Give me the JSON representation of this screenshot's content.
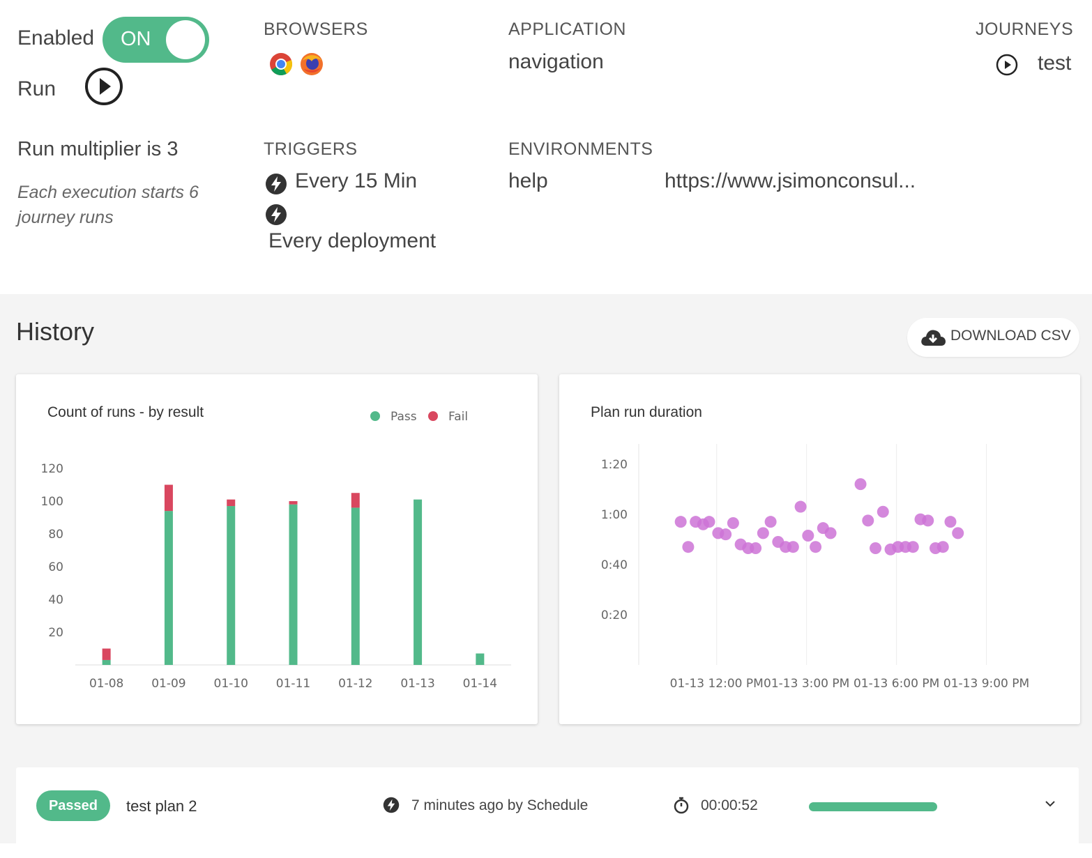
{
  "settings": {
    "enabled_label": "Enabled",
    "toggle_text": "ON",
    "run_label": "Run",
    "multiplier_text": "Run multiplier is 3",
    "execution_note": "Each execution starts 6 journey runs"
  },
  "browsers": {
    "header": "BROWSERS",
    "items": [
      "chrome-icon",
      "firefox-icon"
    ]
  },
  "application": {
    "header": "APPLICATION",
    "value": "navigation"
  },
  "journeys": {
    "header": "JOURNEYS",
    "items": [
      {
        "label": "test"
      }
    ]
  },
  "triggers": {
    "header": "TRIGGERS",
    "items": [
      {
        "label": "Every 15 Min"
      },
      {
        "label": "Every deployment"
      }
    ]
  },
  "environments": {
    "header": "ENVIRONMENTS",
    "name": "help",
    "url": "https://www.jsimonconsul..."
  },
  "history": {
    "title": "History",
    "download_label": "DOWNLOAD CSV"
  },
  "colors": {
    "pass": "#52b98a",
    "fail": "#d9475f",
    "duration": "#cd73d6",
    "accent": "#52b98a"
  },
  "chart_data": [
    {
      "type": "bar",
      "title": "Count of runs - by result",
      "categories": [
        "01-08",
        "01-09",
        "01-10",
        "01-11",
        "01-12",
        "01-13",
        "01-14"
      ],
      "series": [
        {
          "name": "Pass",
          "values": [
            3,
            94,
            97,
            98,
            96,
            101,
            7
          ]
        },
        {
          "name": "Fail",
          "values": [
            7,
            16,
            4,
            2,
            9,
            0,
            0
          ]
        }
      ],
      "stacked": true,
      "yticks": [
        20,
        40,
        60,
        80,
        100,
        120
      ],
      "ylim": [
        0,
        120
      ],
      "legend": "top-right",
      "grid": false
    },
    {
      "type": "scatter",
      "title": "Plan run duration",
      "xticks": [
        "01-13 12:00 PM",
        "01-13 3:00 PM",
        "01-13 6:00 PM",
        "01-13 9:00 PM"
      ],
      "yticks": [
        "0:20",
        "0:40",
        "1:00",
        "1:20"
      ],
      "xlim_hours": [
        9.4,
        23.5
      ],
      "ylim_seconds": [
        0,
        88
      ],
      "grid": "vertical",
      "points": [
        {
          "x_hours": 10.8,
          "y_seconds": 57
        },
        {
          "x_hours": 11.05,
          "y_seconds": 47
        },
        {
          "x_hours": 11.3,
          "y_seconds": 57
        },
        {
          "x_hours": 11.55,
          "y_seconds": 56
        },
        {
          "x_hours": 11.75,
          "y_seconds": 57
        },
        {
          "x_hours": 12.05,
          "y_seconds": 52.5
        },
        {
          "x_hours": 12.3,
          "y_seconds": 52
        },
        {
          "x_hours": 12.55,
          "y_seconds": 56.5
        },
        {
          "x_hours": 12.8,
          "y_seconds": 48
        },
        {
          "x_hours": 13.05,
          "y_seconds": 46.5
        },
        {
          "x_hours": 13.3,
          "y_seconds": 46.5
        },
        {
          "x_hours": 13.55,
          "y_seconds": 52.5
        },
        {
          "x_hours": 13.8,
          "y_seconds": 57
        },
        {
          "x_hours": 14.05,
          "y_seconds": 49
        },
        {
          "x_hours": 14.3,
          "y_seconds": 47
        },
        {
          "x_hours": 14.55,
          "y_seconds": 47
        },
        {
          "x_hours": 14.8,
          "y_seconds": 63
        },
        {
          "x_hours": 15.05,
          "y_seconds": 51.5
        },
        {
          "x_hours": 15.3,
          "y_seconds": 47
        },
        {
          "x_hours": 15.55,
          "y_seconds": 54.5
        },
        {
          "x_hours": 15.8,
          "y_seconds": 52.5
        },
        {
          "x_hours": 16.8,
          "y_seconds": 72
        },
        {
          "x_hours": 17.05,
          "y_seconds": 57.5
        },
        {
          "x_hours": 17.3,
          "y_seconds": 46.5
        },
        {
          "x_hours": 17.55,
          "y_seconds": 61
        },
        {
          "x_hours": 17.8,
          "y_seconds": 46
        },
        {
          "x_hours": 18.05,
          "y_seconds": 47
        },
        {
          "x_hours": 18.3,
          "y_seconds": 47
        },
        {
          "x_hours": 18.55,
          "y_seconds": 47
        },
        {
          "x_hours": 18.8,
          "y_seconds": 58
        },
        {
          "x_hours": 19.05,
          "y_seconds": 57.5
        },
        {
          "x_hours": 19.3,
          "y_seconds": 46.5
        },
        {
          "x_hours": 19.55,
          "y_seconds": 47
        },
        {
          "x_hours": 19.8,
          "y_seconds": 57
        },
        {
          "x_hours": 20.05,
          "y_seconds": 52.5
        }
      ]
    }
  ],
  "run_row": {
    "status": "Passed",
    "plan_name": "test plan 2",
    "trigger_text": "7 minutes ago by Schedule",
    "duration": "00:00:52",
    "progress": 1.0
  }
}
